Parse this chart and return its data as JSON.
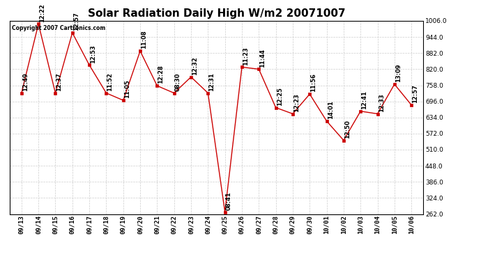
{
  "title": "Solar Radiation Daily High W/m2 20071007",
  "copyright_text": "Copyright 2007 Cartronics.com",
  "x_labels": [
    "09/13",
    "09/14",
    "09/15",
    "09/16",
    "09/17",
    "09/18",
    "09/19",
    "09/20",
    "09/21",
    "09/22",
    "09/23",
    "09/24",
    "09/25",
    "09/26",
    "09/27",
    "09/28",
    "09/29",
    "09/30",
    "10/01",
    "10/02",
    "10/03",
    "10/04",
    "10/05",
    "10/06"
  ],
  "y_values": [
    728,
    994,
    728,
    960,
    836,
    728,
    700,
    890,
    756,
    728,
    790,
    728,
    270,
    828,
    820,
    672,
    648,
    724,
    620,
    546,
    658,
    648,
    762,
    682
  ],
  "time_labels": [
    "12:49",
    "12:22",
    "12:37",
    "12:57",
    "12:53",
    "11:52",
    "11:05",
    "11:08",
    "12:28",
    "08:30",
    "12:32",
    "12:31",
    "08:41",
    "11:23",
    "11:44",
    "12:25",
    "12:23",
    "11:56",
    "14:01",
    "12:50",
    "12:41",
    "12:33",
    "13:09",
    "12:57"
  ],
  "ylim": [
    262.0,
    1006.0
  ],
  "yticks": [
    262.0,
    324.0,
    386.0,
    448.0,
    510.0,
    572.0,
    634.0,
    696.0,
    758.0,
    820.0,
    882.0,
    944.0,
    1006.0
  ],
  "line_color": "#cc0000",
  "marker_color": "#cc0000",
  "bg_color": "#ffffff",
  "grid_color": "#cccccc",
  "title_fontsize": 11,
  "label_fontsize": 6.5,
  "annotation_fontsize": 6,
  "marker_size": 3
}
